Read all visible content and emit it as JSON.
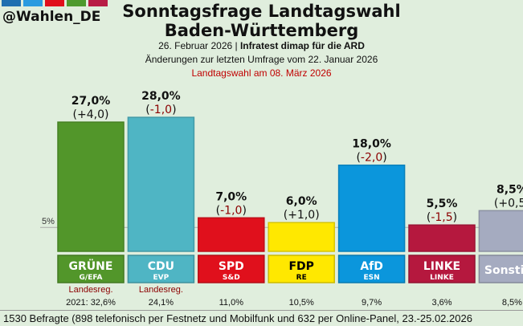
{
  "header": {
    "handle": "@Wahlen_DE",
    "logo_colors": [
      "#1f6fb0",
      "#2a9be0",
      "#e0101c",
      "#4e9a2e",
      "#b81c45"
    ],
    "title_line1": "Sonntagsfrage Landtagswahl",
    "title_line2": "Baden-Württemberg",
    "date_line": "26. Februar 2026 | ",
    "institute": "Infratest dimap für die ARD",
    "changes_line": "Änderungen zur letzten Umfrage vom 22. Januar 2026",
    "election_line": "Landtagswahl am 08. März 2026"
  },
  "chart_data": {
    "type": "bar",
    "threshold_label": "5%",
    "threshold": 5,
    "ylim": [
      0,
      28
    ],
    "categories": [
      "GRÜNE",
      "CDU",
      "SPD",
      "FDP",
      "AfD",
      "LINKE",
      "Sonstige"
    ],
    "groups": [
      "G/EFA",
      "EVP",
      "S&D",
      "RE",
      "ESN",
      "LINKE",
      ""
    ],
    "values": [
      27.0,
      28.0,
      7.0,
      6.0,
      18.0,
      5.5,
      8.5
    ],
    "value_labels": [
      "27,0%",
      "28,0%",
      "7,0%",
      "6,0%",
      "18,0%",
      "5,5%",
      "8,5%"
    ],
    "changes": [
      "+4,0",
      "-1,0",
      "-1,0",
      "+1,0",
      "-2,0",
      "-1,5",
      "+0,5"
    ],
    "colors": [
      "#52962a",
      "#4fb5c4",
      "#e0101c",
      "#ffe800",
      "#0b96dc",
      "#b5183e",
      "#a5abc0"
    ],
    "label_text_colors": [
      "#ffffff",
      "#ffffff",
      "#ffffff",
      "#000000",
      "#ffffff",
      "#ffffff",
      "#ffffff"
    ],
    "government": [
      "Landesreg.",
      "Landesreg.",
      "",
      "",
      "",
      "",
      ""
    ],
    "previous_prefix": "2021: ",
    "previous": [
      "32,6%",
      "24,1%",
      "11,0%",
      "10,5%",
      "9,7%",
      "3,6%",
      "8,5%"
    ]
  },
  "footer": "1530 Befragte (898 telefonisch per Festnetz und Mobilfunk und 632 per Online-Panel, 23.-25.02.2026"
}
